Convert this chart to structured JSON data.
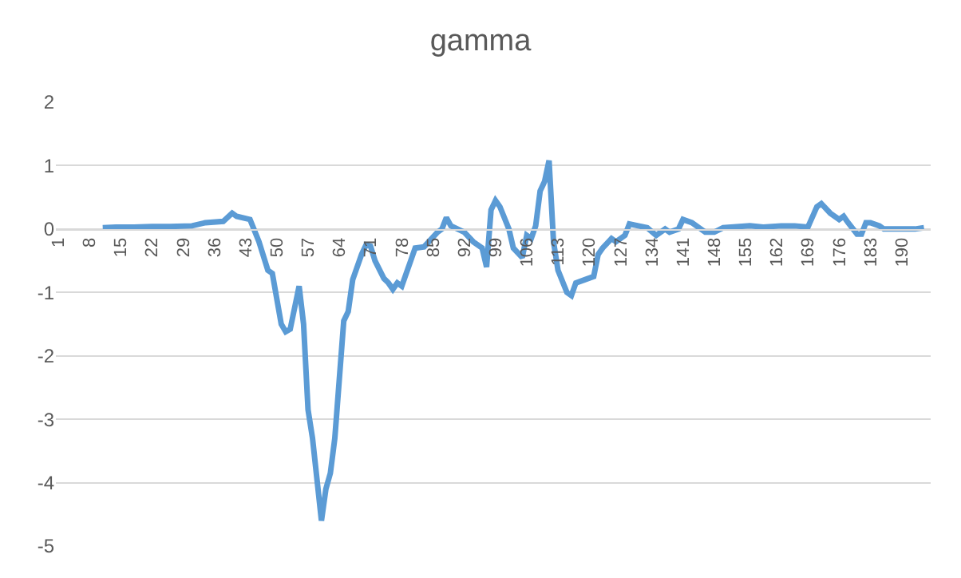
{
  "chart_data": {
    "type": "line",
    "title": "gamma",
    "x": [
      11,
      14,
      18,
      22,
      26,
      31,
      34,
      38,
      40,
      41,
      44,
      46,
      48,
      49,
      51,
      52,
      53,
      55,
      56,
      57,
      58,
      60,
      61,
      62,
      63,
      65,
      66,
      67,
      69,
      70,
      71,
      72,
      74,
      75,
      76,
      77,
      78,
      80,
      81,
      83,
      86,
      87,
      88,
      89,
      92,
      94,
      96,
      97,
      98,
      99,
      100,
      102,
      103,
      105,
      106,
      107,
      108,
      109,
      110,
      111,
      112,
      113,
      115,
      116,
      117,
      119,
      121,
      122,
      123,
      125,
      126,
      128,
      129,
      131,
      133,
      135,
      137,
      138,
      140,
      141,
      143,
      146,
      148,
      150,
      156,
      159,
      163,
      166,
      169,
      171,
      172,
      174,
      176,
      177,
      178,
      180,
      181,
      182,
      183,
      185,
      186,
      190,
      193,
      195
    ],
    "series": [
      {
        "color": "#5b9bd5",
        "values": [
          0.02,
          0.03,
          0.03,
          0.04,
          0.04,
          0.05,
          0.1,
          0.12,
          0.25,
          0.2,
          0.15,
          -0.2,
          -0.65,
          -0.7,
          -1.5,
          -1.62,
          -1.58,
          -0.9,
          -1.5,
          -2.85,
          -3.3,
          -4.6,
          -4.1,
          -3.85,
          -3.3,
          -1.45,
          -1.3,
          -0.8,
          -0.4,
          -0.25,
          -0.27,
          -0.5,
          -0.78,
          -0.85,
          -0.95,
          -0.85,
          -0.9,
          -0.5,
          -0.3,
          -0.28,
          -0.05,
          0.0,
          0.18,
          0.05,
          -0.05,
          -0.2,
          -0.3,
          -0.6,
          0.3,
          0.45,
          0.35,
          0.0,
          -0.3,
          -0.45,
          -0.1,
          -0.15,
          0.05,
          0.6,
          0.75,
          1.08,
          -0.2,
          -0.65,
          -1.0,
          -1.05,
          -0.85,
          -0.8,
          -0.75,
          -0.4,
          -0.3,
          -0.15,
          -0.2,
          -0.1,
          0.08,
          0.05,
          0.02,
          -0.1,
          0.0,
          -0.05,
          0.0,
          0.15,
          0.1,
          -0.05,
          -0.05,
          0.02,
          0.05,
          0.03,
          0.05,
          0.05,
          0.03,
          0.35,
          0.4,
          0.25,
          0.15,
          0.2,
          0.1,
          -0.08,
          -0.08,
          0.1,
          0.1,
          0.05,
          0.0,
          0.0,
          0.0,
          0.02
        ]
      }
    ],
    "xlim": [
      0.5,
      196.5
    ],
    "xticks": [
      1,
      8,
      15,
      22,
      29,
      36,
      43,
      50,
      57,
      64,
      71,
      78,
      85,
      92,
      99,
      106,
      113,
      120,
      127,
      134,
      141,
      148,
      155,
      162,
      169,
      176,
      183,
      190
    ],
    "ylim": [
      -5,
      2
    ],
    "yticks": [
      -5,
      -4,
      -3,
      -2,
      -1,
      0,
      1,
      2
    ],
    "grid": "y",
    "marker": "none",
    "line_style": "solid"
  }
}
